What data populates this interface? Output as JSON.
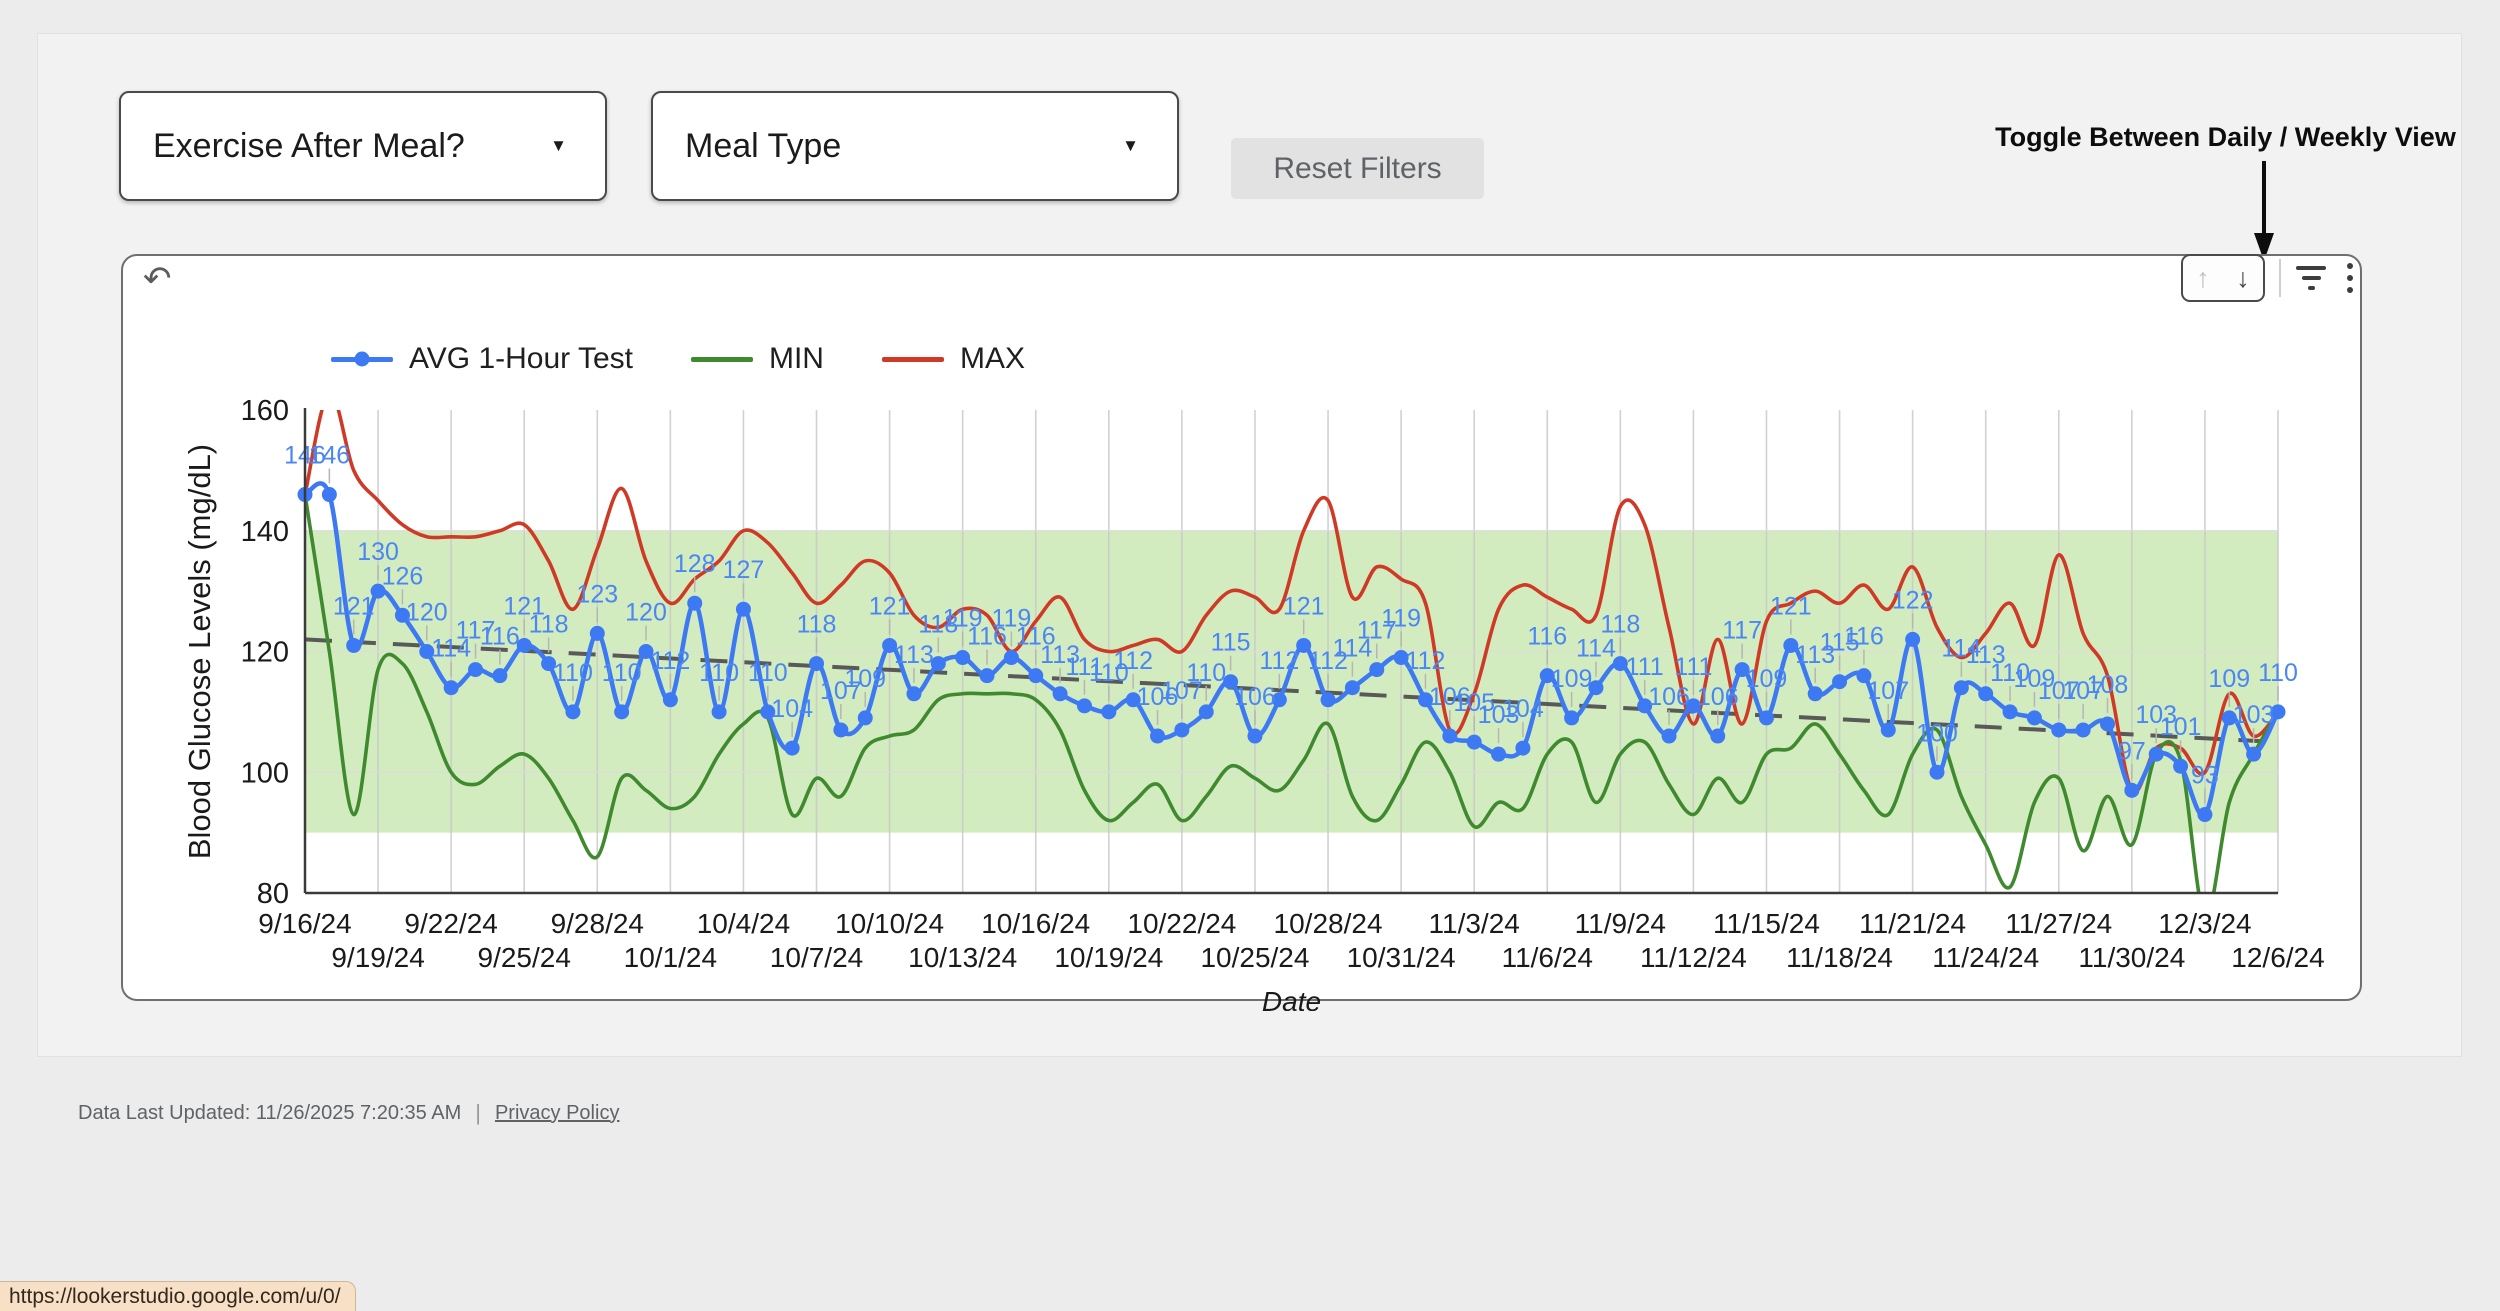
{
  "filters": {
    "exercise": {
      "label": "Exercise After Meal?"
    },
    "meal": {
      "label": "Meal Type"
    },
    "reset_label": "Reset Filters"
  },
  "annotation": {
    "toggle_text": "Toggle Between Daily / Weekly View"
  },
  "footer": {
    "updated": "Data Last Updated: 11/26/2025 7:20:35 AM",
    "divider": "|",
    "privacy_link": "Privacy Policy"
  },
  "status": {
    "url_tooltip": "https://lookerstudio.google.com/u/0/"
  },
  "chart_data": {
    "type": "line",
    "xlabel": "Date",
    "ylabel": "Blood Glucose Levels (mg/dL)",
    "ylim": [
      80,
      160
    ],
    "yticks": [
      160,
      140,
      120,
      100,
      80
    ],
    "grid": true,
    "legend_position": "top",
    "x_tick_row1": [
      "9/16/24",
      "9/22/24",
      "9/28/24",
      "10/4/24",
      "10/10/24",
      "10/16/24",
      "10/22/24",
      "10/28/24",
      "11/3/24",
      "11/9/24",
      "11/15/24",
      "11/21/24",
      "11/27/24",
      "12/3/24"
    ],
    "x_tick_row2": [
      "9/19/24",
      "9/25/24",
      "10/1/24",
      "10/7/24",
      "10/13/24",
      "10/19/24",
      "10/25/24",
      "10/31/24",
      "11/6/24",
      "11/12/24",
      "11/18/24",
      "11/24/24",
      "11/30/24",
      "12/6/24"
    ],
    "dates": [
      "9/16/24",
      "9/17/24",
      "9/18/24",
      "9/19/24",
      "9/20/24",
      "9/21/24",
      "9/22/24",
      "9/23/24",
      "9/24/24",
      "9/25/24",
      "9/26/24",
      "9/27/24",
      "9/28/24",
      "9/29/24",
      "9/30/24",
      "10/1/24",
      "10/2/24",
      "10/3/24",
      "10/4/24",
      "10/5/24",
      "10/6/24",
      "10/7/24",
      "10/8/24",
      "10/9/24",
      "10/10/24",
      "10/11/24",
      "10/12/24",
      "10/13/24",
      "10/14/24",
      "10/15/24",
      "10/16/24",
      "10/17/24",
      "10/18/24",
      "10/19/24",
      "10/20/24",
      "10/21/24",
      "10/22/24",
      "10/23/24",
      "10/24/24",
      "10/25/24",
      "10/26/24",
      "10/27/24",
      "10/28/24",
      "10/29/24",
      "10/30/24",
      "10/31/24",
      "11/1/24",
      "11/2/24",
      "11/3/24",
      "11/4/24",
      "11/5/24",
      "11/6/24",
      "11/7/24",
      "11/8/24",
      "11/9/24",
      "11/10/24",
      "11/11/24",
      "11/12/24",
      "11/13/24",
      "11/14/24",
      "11/15/24",
      "11/16/24",
      "11/17/24",
      "11/18/24",
      "11/19/24",
      "11/20/24",
      "11/21/24",
      "11/22/24",
      "11/23/24",
      "11/24/24",
      "11/25/24",
      "11/26/24",
      "11/27/24",
      "11/28/24",
      "11/29/24",
      "11/30/24",
      "12/1/24",
      "12/2/24",
      "12/3/24",
      "12/4/24",
      "12/5/24",
      "12/6/24"
    ],
    "series": [
      {
        "name": "AVG 1-Hour Test",
        "color": "#3d79f2",
        "label_color": "#4a86f4",
        "show_points": true,
        "show_labels": true,
        "values": [
          146,
          146,
          121,
          130,
          126,
          120,
          114,
          117,
          116,
          121,
          118,
          110,
          123,
          110,
          120,
          112,
          128,
          110,
          127,
          110,
          104,
          118,
          107,
          109,
          121,
          113,
          118,
          119,
          116,
          119,
          116,
          113,
          111,
          110,
          112,
          106,
          107,
          110,
          115,
          106,
          112,
          121,
          112,
          114,
          117,
          119,
          112,
          106,
          105,
          103,
          104,
          116,
          109,
          114,
          118,
          111,
          106,
          111,
          106,
          117,
          109,
          121,
          113,
          115,
          116,
          107,
          122,
          100,
          114,
          113,
          110,
          109,
          107,
          107,
          108,
          97,
          103,
          101,
          93,
          109,
          103,
          110
        ]
      },
      {
        "name": "MIN",
        "color": "#3f8a2e",
        "show_points": false,
        "show_labels": false,
        "values": [
          146,
          120,
          93,
          117,
          118,
          110,
          100,
          98,
          101,
          103,
          99,
          92,
          86,
          99,
          97,
          94,
          96,
          103,
          108,
          109,
          93,
          99,
          96,
          104,
          106,
          107,
          112,
          113,
          113,
          113,
          112,
          107,
          97,
          92,
          95,
          98,
          92,
          96,
          101,
          99,
          97,
          102,
          108,
          96,
          92,
          98,
          105,
          100,
          91,
          95,
          94,
          103,
          105,
          95,
          103,
          105,
          98,
          93,
          99,
          95,
          103,
          104,
          108,
          103,
          97,
          93,
          103,
          107,
          96,
          88,
          81,
          95,
          99,
          87,
          96,
          88,
          103,
          102,
          76,
          95,
          103,
          110
        ]
      },
      {
        "name": "MAX",
        "color": "#cf3a27",
        "show_points": false,
        "show_labels": false,
        "values": [
          146,
          163,
          150,
          145,
          141,
          139,
          139,
          139,
          140,
          141,
          135,
          127,
          137,
          147,
          135,
          128,
          132,
          135,
          140,
          138,
          133,
          128,
          131,
          135,
          133,
          126,
          124,
          127,
          126,
          120,
          125,
          129,
          122,
          120,
          121,
          122,
          120,
          126,
          130,
          129,
          127,
          140,
          145,
          129,
          134,
          132,
          128,
          107,
          113,
          127,
          131,
          129,
          127,
          126,
          144,
          141,
          124,
          108,
          122,
          108,
          125,
          128,
          130,
          128,
          131,
          127,
          134,
          124,
          119,
          123,
          128,
          121,
          136,
          123,
          116,
          97,
          104,
          104,
          100,
          113,
          106,
          110
        ]
      }
    ],
    "reference_band": {
      "from": 90,
      "to": 140,
      "color": "#d3ecbf"
    },
    "trend_line": {
      "start": 122,
      "end": 105,
      "color": "#595959",
      "style": "dashed"
    }
  },
  "icons": {
    "undo": "↶",
    "caret": "▼",
    "arrow_up": "↑",
    "arrow_down": "↓"
  }
}
